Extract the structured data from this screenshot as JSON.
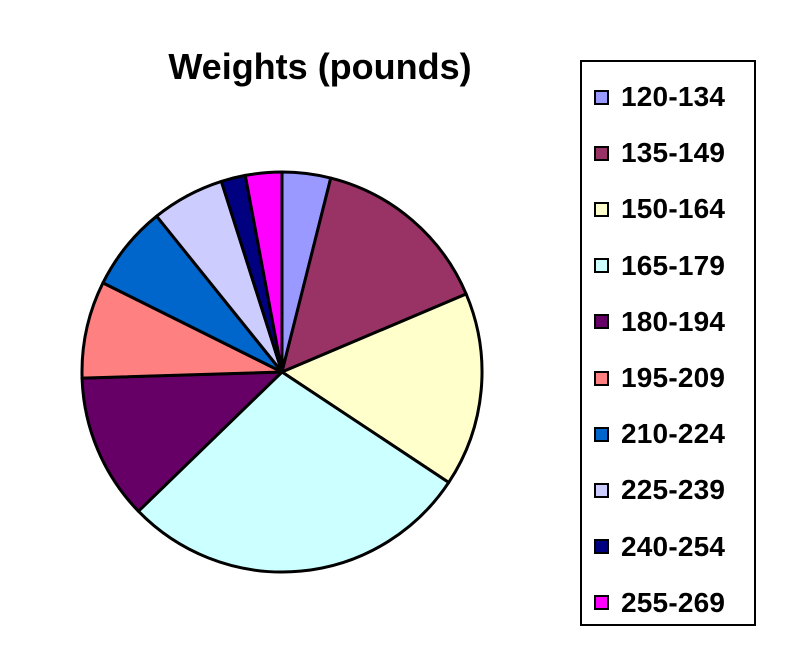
{
  "chart_data": {
    "type": "pie",
    "title": "Weights (pounds)",
    "categories": [
      "120-134",
      "135-149",
      "150-164",
      "165-179",
      "180-194",
      "195-209",
      "210-224",
      "225-239",
      "240-254",
      "255-269"
    ],
    "values": [
      4,
      15,
      16,
      29,
      12,
      8,
      7,
      6,
      2,
      3
    ],
    "colors": [
      "#9999ff",
      "#993366",
      "#ffffcc",
      "#ccffff",
      "#660066",
      "#ff8080",
      "#0066cc",
      "#ccccff",
      "#000080",
      "#ff00ff"
    ],
    "legend_position": "right"
  }
}
